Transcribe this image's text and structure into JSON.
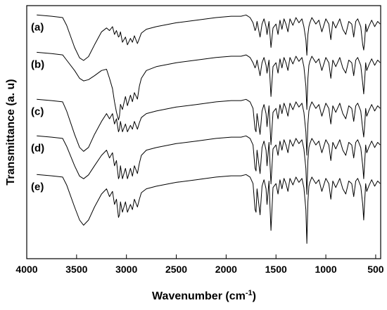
{
  "chart_data": {
    "type": "line",
    "title": "",
    "xlabel": "Wavenumber (cm",
    "xlabel_sup": "-1",
    "xlabel_tail": ")",
    "ylabel": "Transmittance (a. u)",
    "xlim": [
      4000,
      450
    ],
    "x_reversed": true,
    "y_tick_labels": "none",
    "x_ticks": [
      4000,
      3500,
      3000,
      2500,
      2000,
      1500,
      1000,
      500
    ],
    "x_tick_labels": [
      "4000",
      "3500",
      "3000",
      "2500",
      "2000",
      "1500",
      "1000",
      "500"
    ],
    "grid": false,
    "legend": "none",
    "series": [
      {
        "label": "(a)",
        "x": [
          3900,
          3750,
          3640,
          3600,
          3520,
          3470,
          3430,
          3380,
          3320,
          3250,
          3200,
          3170,
          3140,
          3120,
          3100,
          3080,
          3070,
          3060,
          3040,
          3010,
          2990,
          2960,
          2940,
          2920,
          2890,
          2870,
          2850,
          2800,
          2700,
          2500,
          2300,
          2100,
          1950,
          1850,
          1800,
          1760,
          1730,
          1710,
          1700,
          1690,
          1660,
          1640,
          1620,
          1600,
          1590,
          1570,
          1550,
          1530,
          1500,
          1480,
          1460,
          1440,
          1420,
          1400,
          1380,
          1360,
          1330,
          1300,
          1270,
          1240,
          1220,
          1200,
          1190,
          1180,
          1170,
          1160,
          1140,
          1100,
          1070,
          1040,
          1000,
          970,
          950,
          930,
          900,
          860,
          830,
          800,
          770,
          740,
          720,
          700,
          680,
          650,
          630,
          620,
          610,
          600,
          590,
          570,
          540,
          510,
          480,
          455
        ],
        "y": [
          95,
          94,
          93,
          87,
          70,
          62,
          60,
          63,
          72,
          82,
          85,
          83,
          86,
          80,
          83,
          78,
          79,
          82,
          74,
          78,
          72,
          77,
          74,
          79,
          73,
          77,
          81,
          84,
          86,
          89,
          91,
          93,
          94,
          94,
          95,
          93,
          89,
          83,
          85,
          90,
          78,
          88,
          92,
          86,
          80,
          90,
          70,
          85,
          88,
          80,
          91,
          84,
          92,
          88,
          82,
          92,
          87,
          93,
          89,
          92,
          86,
          76,
          64,
          80,
          86,
          89,
          93,
          88,
          91,
          82,
          92,
          88,
          76,
          90,
          85,
          92,
          84,
          80,
          90,
          88,
          78,
          90,
          92,
          86,
          72,
          68,
          75,
          88,
          82,
          86,
          91,
          86,
          90,
          88
        ]
      },
      {
        "label": "(b)",
        "x": [
          3900,
          3750,
          3640,
          3600,
          3520,
          3470,
          3430,
          3380,
          3320,
          3250,
          3200,
          3170,
          3140,
          3120,
          3100,
          3080,
          3070,
          3060,
          3040,
          3010,
          2990,
          2960,
          2940,
          2920,
          2890,
          2870,
          2850,
          2800,
          2700,
          2500,
          2300,
          2100,
          1950,
          1850,
          1800,
          1760,
          1730,
          1710,
          1700,
          1690,
          1660,
          1640,
          1620,
          1600,
          1590,
          1570,
          1550,
          1530,
          1500,
          1480,
          1460,
          1440,
          1420,
          1400,
          1380,
          1360,
          1330,
          1300,
          1270,
          1240,
          1220,
          1200,
          1190,
          1180,
          1170,
          1160,
          1140,
          1100,
          1070,
          1040,
          1000,
          970,
          950,
          930,
          900,
          860,
          830,
          800,
          770,
          740,
          720,
          700,
          680,
          650,
          630,
          620,
          610,
          600,
          590,
          570,
          540,
          510,
          480,
          455
        ],
        "y": [
          96,
          95,
          94,
          90,
          82,
          76,
          74,
          75,
          78,
          82,
          83,
          76,
          68,
          58,
          50,
          44,
          47,
          56,
          52,
          62,
          55,
          63,
          58,
          65,
          60,
          70,
          76,
          82,
          85,
          88,
          90,
          92,
          93,
          93,
          94,
          92,
          88,
          84,
          86,
          90,
          78,
          88,
          92,
          86,
          80,
          90,
          62,
          85,
          88,
          80,
          91,
          84,
          92,
          88,
          82,
          92,
          87,
          93,
          89,
          92,
          85,
          70,
          52,
          76,
          86,
          89,
          93,
          88,
          91,
          82,
          92,
          88,
          76,
          90,
          85,
          92,
          84,
          80,
          90,
          88,
          78,
          90,
          92,
          86,
          72,
          64,
          75,
          88,
          82,
          86,
          91,
          86,
          90,
          88
        ]
      },
      {
        "label": "(c)",
        "x": [
          3900,
          3750,
          3640,
          3600,
          3520,
          3470,
          3430,
          3380,
          3320,
          3250,
          3200,
          3170,
          3140,
          3120,
          3100,
          3080,
          3070,
          3060,
          3040,
          3010,
          2990,
          2960,
          2940,
          2920,
          2890,
          2870,
          2850,
          2800,
          2700,
          2500,
          2300,
          2100,
          1950,
          1850,
          1800,
          1760,
          1730,
          1710,
          1700,
          1690,
          1660,
          1640,
          1620,
          1600,
          1590,
          1570,
          1550,
          1530,
          1500,
          1480,
          1460,
          1440,
          1420,
          1400,
          1380,
          1360,
          1330,
          1300,
          1270,
          1240,
          1220,
          1200,
          1190,
          1180,
          1170,
          1160,
          1140,
          1100,
          1070,
          1040,
          1000,
          970,
          950,
          930,
          900,
          860,
          830,
          800,
          770,
          740,
          720,
          700,
          680,
          650,
          630,
          620,
          610,
          600,
          590,
          570,
          540,
          510,
          480,
          455
        ],
        "y": [
          95,
          94,
          93,
          86,
          68,
          58,
          55,
          58,
          68,
          78,
          84,
          80,
          84,
          76,
          80,
          70,
          72,
          78,
          70,
          76,
          70,
          75,
          72,
          78,
          72,
          77,
          81,
          84,
          86,
          89,
          91,
          93,
          94,
          94,
          95,
          93,
          88,
          72,
          70,
          84,
          68,
          86,
          91,
          84,
          74,
          90,
          60,
          85,
          88,
          80,
          91,
          84,
          92,
          88,
          82,
          92,
          87,
          93,
          89,
          92,
          85,
          70,
          52,
          76,
          86,
          89,
          93,
          88,
          91,
          82,
          92,
          88,
          76,
          90,
          85,
          92,
          84,
          80,
          90,
          88,
          78,
          90,
          92,
          86,
          72,
          66,
          75,
          88,
          82,
          86,
          91,
          86,
          90,
          88
        ]
      },
      {
        "label": "(d)",
        "x": [
          3900,
          3750,
          3640,
          3600,
          3520,
          3470,
          3430,
          3380,
          3320,
          3250,
          3200,
          3170,
          3140,
          3120,
          3100,
          3080,
          3070,
          3060,
          3040,
          3010,
          2990,
          2960,
          2940,
          2920,
          2890,
          2870,
          2850,
          2800,
          2700,
          2500,
          2300,
          2100,
          1950,
          1850,
          1800,
          1760,
          1730,
          1710,
          1700,
          1690,
          1660,
          1640,
          1620,
          1600,
          1590,
          1570,
          1550,
          1530,
          1500,
          1480,
          1460,
          1440,
          1420,
          1400,
          1380,
          1360,
          1330,
          1300,
          1270,
          1240,
          1220,
          1200,
          1190,
          1180,
          1170,
          1160,
          1140,
          1100,
          1070,
          1040,
          1000,
          970,
          950,
          930,
          900,
          860,
          830,
          800,
          770,
          740,
          720,
          700,
          680,
          650,
          630,
          620,
          610,
          600,
          590,
          570,
          540,
          510,
          480,
          455
        ],
        "y": [
          95,
          94,
          93,
          87,
          72,
          64,
          62,
          65,
          72,
          80,
          84,
          78,
          82,
          72,
          76,
          62,
          64,
          72,
          62,
          70,
          62,
          70,
          64,
          72,
          66,
          74,
          80,
          84,
          86,
          89,
          91,
          93,
          94,
          94,
          95,
          93,
          88,
          70,
          68,
          84,
          66,
          86,
          91,
          84,
          72,
          90,
          58,
          85,
          88,
          80,
          91,
          84,
          92,
          88,
          82,
          92,
          87,
          93,
          89,
          92,
          85,
          70,
          50,
          76,
          86,
          89,
          93,
          88,
          91,
          82,
          92,
          88,
          76,
          90,
          85,
          92,
          84,
          80,
          90,
          88,
          78,
          90,
          92,
          86,
          72,
          62,
          75,
          88,
          82,
          86,
          91,
          86,
          90,
          88
        ]
      },
      {
        "label": "(e)",
        "x": [
          3900,
          3750,
          3640,
          3600,
          3520,
          3470,
          3430,
          3380,
          3320,
          3250,
          3200,
          3170,
          3140,
          3120,
          3100,
          3080,
          3070,
          3060,
          3040,
          3010,
          2990,
          2960,
          2940,
          2920,
          2890,
          2870,
          2850,
          2800,
          2700,
          2500,
          2300,
          2100,
          1950,
          1850,
          1800,
          1760,
          1730,
          1710,
          1700,
          1690,
          1660,
          1640,
          1620,
          1600,
          1590,
          1570,
          1550,
          1530,
          1500,
          1480,
          1460,
          1440,
          1420,
          1400,
          1380,
          1360,
          1330,
          1300,
          1270,
          1240,
          1220,
          1200,
          1190,
          1180,
          1170,
          1160,
          1140,
          1100,
          1070,
          1040,
          1000,
          970,
          950,
          930,
          900,
          860,
          830,
          800,
          770,
          740,
          720,
          700,
          680,
          650,
          630,
          620,
          610,
          600,
          590,
          570,
          540,
          510,
          480,
          455
        ],
        "y": [
          95,
          94,
          93,
          87,
          70,
          60,
          56,
          60,
          70,
          80,
          84,
          78,
          82,
          72,
          76,
          62,
          64,
          74,
          66,
          74,
          66,
          72,
          68,
          76,
          70,
          76,
          81,
          84,
          86,
          89,
          91,
          93,
          94,
          94,
          95,
          93,
          88,
          68,
          66,
          84,
          64,
          86,
          91,
          84,
          72,
          90,
          52,
          85,
          88,
          80,
          91,
          84,
          92,
          88,
          82,
          92,
          87,
          93,
          89,
          92,
          85,
          68,
          42,
          74,
          86,
          89,
          93,
          88,
          91,
          82,
          92,
          88,
          76,
          90,
          85,
          92,
          84,
          80,
          90,
          88,
          78,
          90,
          92,
          86,
          72,
          60,
          75,
          88,
          82,
          86,
          91,
          86,
          90,
          88
        ]
      }
    ]
  }
}
